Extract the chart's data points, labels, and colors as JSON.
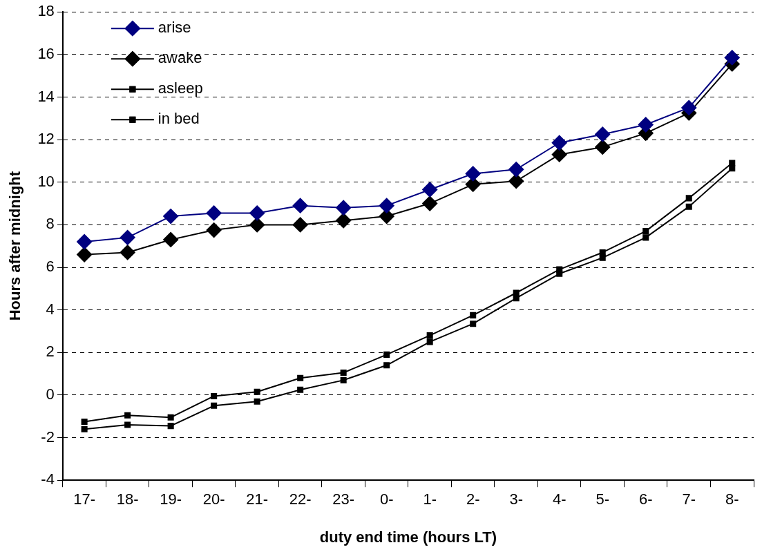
{
  "chart_data": {
    "type": "line",
    "xlabel": "duty end time (hours LT)",
    "ylabel": "Hours after midnight",
    "categories": [
      "17-",
      "18-",
      "19-",
      "20-",
      "21-",
      "22-",
      "23-",
      "0-",
      "1-",
      "2-",
      "3-",
      "4-",
      "5-",
      "6-",
      "7-",
      "8-"
    ],
    "series": [
      {
        "name": "arise",
        "color": "#000080",
        "marker": "diamond",
        "values": [
          7.2,
          7.4,
          8.4,
          8.55,
          8.55,
          8.9,
          8.8,
          8.9,
          9.65,
          10.4,
          10.6,
          11.85,
          12.25,
          12.7,
          13.5,
          15.85
        ]
      },
      {
        "name": "awake",
        "color": "#000000",
        "marker": "diamond",
        "values": [
          6.6,
          6.7,
          7.3,
          7.75,
          8.0,
          8.0,
          8.2,
          8.4,
          9.0,
          9.9,
          10.05,
          11.3,
          11.65,
          12.3,
          13.25,
          15.55
        ]
      },
      {
        "name": "asleep",
        "color": "#000000",
        "marker": "square",
        "values": [
          -1.25,
          -0.95,
          -1.05,
          -0.05,
          0.15,
          0.8,
          1.05,
          1.9,
          2.8,
          3.75,
          4.8,
          5.9,
          6.7,
          7.7,
          9.25,
          10.9
        ]
      },
      {
        "name": "in bed",
        "color": "#000000",
        "marker": "square",
        "values": [
          -1.6,
          -1.4,
          -1.45,
          -0.5,
          -0.3,
          0.25,
          0.7,
          1.4,
          2.5,
          3.35,
          4.55,
          5.7,
          6.45,
          7.4,
          8.85,
          10.65
        ]
      }
    ],
    "ylim": [
      -4,
      18
    ],
    "yticks": [
      -4,
      -2,
      0,
      2,
      4,
      6,
      8,
      10,
      12,
      14,
      16,
      18
    ],
    "grid": "y",
    "legend": "top left",
    "line_style": "solid"
  }
}
